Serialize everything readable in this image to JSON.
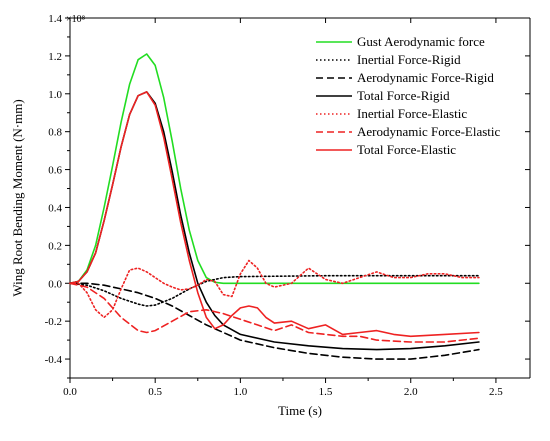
{
  "chart_data": {
    "type": "line",
    "title": "",
    "xlabel": "Time (s)",
    "ylabel": "Wing Root Bending Moment (N·mm)",
    "y_multiplier_label": "×10⁸",
    "xlim": [
      0,
      2.7
    ],
    "ylim": [
      -0.5,
      1.4
    ],
    "xticks": [
      "0.0",
      "0.5",
      "1.0",
      "1.5",
      "2.0",
      "2.5"
    ],
    "xtick_values": [
      0,
      0.5,
      1.0,
      1.5,
      2.0,
      2.5
    ],
    "yticks": [
      "-0.4",
      "-0.2",
      "0.0",
      "0.2",
      "0.4",
      "0.6",
      "0.8",
      "1.0",
      "1.2",
      "1.4"
    ],
    "ytick_values": [
      -0.4,
      -0.2,
      0.0,
      0.2,
      0.4,
      0.6,
      0.8,
      1.0,
      1.2,
      1.4
    ],
    "grid": false,
    "legend_position": "top-right",
    "series": [
      {
        "name": "Gust Aerodynamic force",
        "color": "#22dd22",
        "dash": "solid",
        "x": [
          0,
          0.05,
          0.1,
          0.15,
          0.2,
          0.25,
          0.3,
          0.35,
          0.4,
          0.45,
          0.5,
          0.55,
          0.6,
          0.65,
          0.7,
          0.75,
          0.8,
          0.85,
          0.9,
          1.0,
          1.5,
          2.0,
          2.4
        ],
        "y": [
          0,
          0.01,
          0.07,
          0.2,
          0.4,
          0.62,
          0.85,
          1.05,
          1.18,
          1.21,
          1.15,
          0.98,
          0.75,
          0.5,
          0.28,
          0.12,
          0.03,
          0.005,
          0,
          0,
          0,
          0,
          0
        ]
      },
      {
        "name": "Inertial Force-Rigid",
        "color": "#000000",
        "dash": "dotted",
        "x": [
          0,
          0.1,
          0.2,
          0.3,
          0.4,
          0.45,
          0.5,
          0.6,
          0.7,
          0.8,
          0.9,
          1.0,
          1.5,
          2.0,
          2.4
        ],
        "y": [
          0,
          -0.01,
          -0.04,
          -0.08,
          -0.11,
          -0.12,
          -0.115,
          -0.08,
          -0.03,
          0.01,
          0.03,
          0.035,
          0.04,
          0.04,
          0.04
        ]
      },
      {
        "name": "Aerodynamic Force-Rigid",
        "color": "#000000",
        "dash": "dashed",
        "x": [
          0,
          0.1,
          0.2,
          0.3,
          0.4,
          0.5,
          0.6,
          0.7,
          0.8,
          0.9,
          1.0,
          1.2,
          1.4,
          1.6,
          1.8,
          2.0,
          2.2,
          2.4
        ],
        "y": [
          0,
          0,
          -0.01,
          -0.03,
          -0.05,
          -0.08,
          -0.12,
          -0.17,
          -0.22,
          -0.26,
          -0.3,
          -0.34,
          -0.37,
          -0.39,
          -0.4,
          -0.4,
          -0.38,
          -0.35
        ]
      },
      {
        "name": "Total Force-Rigid",
        "color": "#000000",
        "dash": "solid",
        "x": [
          0,
          0.05,
          0.1,
          0.15,
          0.2,
          0.25,
          0.3,
          0.35,
          0.4,
          0.45,
          0.5,
          0.55,
          0.6,
          0.65,
          0.7,
          0.75,
          0.8,
          0.85,
          0.9,
          1.0,
          1.2,
          1.4,
          1.6,
          1.8,
          2.0,
          2.2,
          2.4
        ],
        "y": [
          0,
          0.01,
          0.06,
          0.16,
          0.33,
          0.52,
          0.72,
          0.89,
          0.99,
          1.01,
          0.95,
          0.8,
          0.59,
          0.36,
          0.16,
          0.0,
          -0.1,
          -0.17,
          -0.22,
          -0.27,
          -0.31,
          -0.33,
          -0.345,
          -0.35,
          -0.345,
          -0.33,
          -0.31
        ]
      },
      {
        "name": "Inertial Force-Elastic",
        "color": "#ee2222",
        "dash": "dotted",
        "x": [
          0,
          0.05,
          0.1,
          0.15,
          0.2,
          0.25,
          0.3,
          0.35,
          0.4,
          0.45,
          0.5,
          0.55,
          0.6,
          0.65,
          0.7,
          0.75,
          0.8,
          0.85,
          0.9,
          0.95,
          1.0,
          1.05,
          1.1,
          1.15,
          1.2,
          1.3,
          1.4,
          1.5,
          1.6,
          1.7,
          1.8,
          1.9,
          2.0,
          2.1,
          2.2,
          2.3,
          2.4
        ],
        "y": [
          0,
          0,
          -0.05,
          -0.14,
          -0.18,
          -0.14,
          -0.03,
          0.07,
          0.08,
          0.06,
          0.03,
          0.0,
          -0.02,
          -0.035,
          -0.03,
          -0.01,
          0.02,
          0.01,
          -0.06,
          -0.07,
          0.05,
          0.12,
          0.08,
          0.0,
          -0.02,
          0.0,
          0.08,
          0.02,
          0.0,
          0.03,
          0.06,
          0.03,
          0.03,
          0.05,
          0.05,
          0.03,
          0.03
        ]
      },
      {
        "name": "Aerodynamic Force-Elastic",
        "color": "#ee2222",
        "dash": "dashed",
        "x": [
          0,
          0.1,
          0.2,
          0.3,
          0.4,
          0.45,
          0.5,
          0.6,
          0.7,
          0.8,
          0.9,
          1.0,
          1.1,
          1.2,
          1.3,
          1.4,
          1.5,
          1.6,
          1.7,
          1.8,
          2.0,
          2.2,
          2.4
        ],
        "y": [
          0,
          -0.02,
          -0.08,
          -0.18,
          -0.25,
          -0.26,
          -0.25,
          -0.2,
          -0.15,
          -0.14,
          -0.16,
          -0.19,
          -0.22,
          -0.25,
          -0.22,
          -0.26,
          -0.27,
          -0.28,
          -0.28,
          -0.3,
          -0.31,
          -0.31,
          -0.29
        ]
      },
      {
        "name": "Total Force-Elastic",
        "color": "#ee2222",
        "dash": "solid",
        "x": [
          0,
          0.05,
          0.1,
          0.15,
          0.2,
          0.25,
          0.3,
          0.35,
          0.4,
          0.45,
          0.5,
          0.55,
          0.6,
          0.65,
          0.7,
          0.75,
          0.8,
          0.85,
          0.9,
          0.95,
          1.0,
          1.05,
          1.1,
          1.15,
          1.2,
          1.3,
          1.4,
          1.5,
          1.6,
          1.7,
          1.8,
          1.9,
          2.0,
          2.2,
          2.4
        ],
        "y": [
          0,
          0.01,
          0.06,
          0.16,
          0.33,
          0.52,
          0.72,
          0.89,
          0.99,
          1.01,
          0.94,
          0.77,
          0.55,
          0.32,
          0.12,
          -0.05,
          -0.18,
          -0.24,
          -0.22,
          -0.17,
          -0.13,
          -0.12,
          -0.13,
          -0.18,
          -0.21,
          -0.2,
          -0.24,
          -0.22,
          -0.27,
          -0.26,
          -0.25,
          -0.27,
          -0.28,
          -0.27,
          -0.26
        ]
      }
    ]
  }
}
